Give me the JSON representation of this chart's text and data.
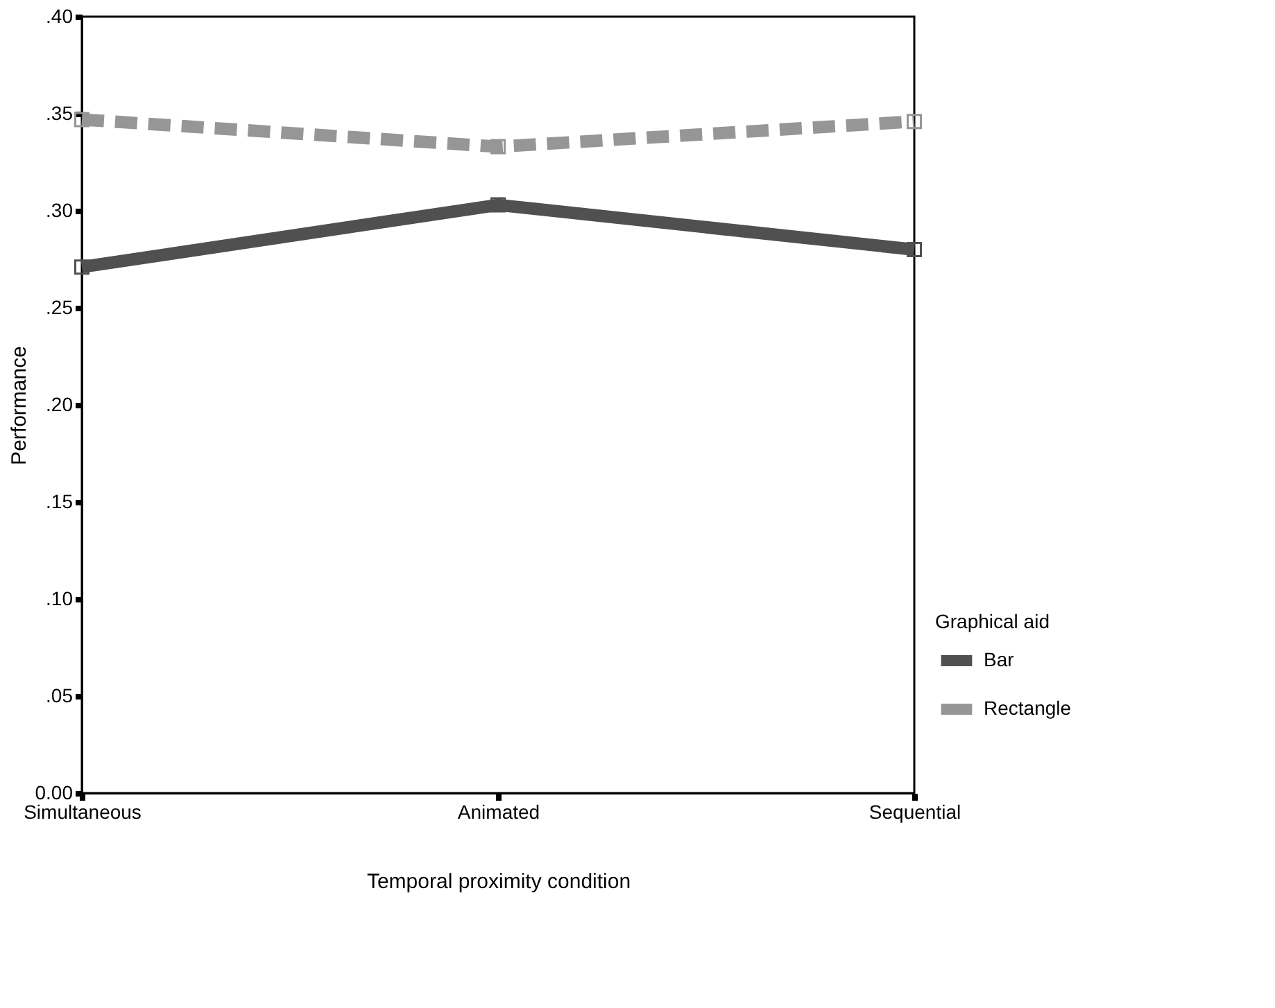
{
  "chart_data": {
    "type": "line",
    "xlabel": "Temporal proximity condition",
    "ylabel": "Performance",
    "legend_title": "Graphical aid",
    "categories": [
      "Simultaneous",
      "Animated",
      "Sequential"
    ],
    "series": [
      {
        "name": "Bar",
        "color": "#505050",
        "line_style": "solid",
        "values": [
          0.271,
          0.303,
          0.28
        ]
      },
      {
        "name": "Rectangle",
        "color": "#969696",
        "line_style": "dashed",
        "values": [
          0.347,
          0.333,
          0.346
        ]
      }
    ],
    "ylim": [
      0,
      0.4
    ],
    "yticks": [
      {
        "value": 0,
        "label": "0.00"
      },
      {
        "value": 0.05,
        "label": ".05"
      },
      {
        "value": 0.1,
        "label": ".10"
      },
      {
        "value": 0.15,
        "label": ".15"
      },
      {
        "value": 0.2,
        "label": ".20"
      },
      {
        "value": 0.25,
        "label": ".25"
      },
      {
        "value": 0.3,
        "label": ".30"
      },
      {
        "value": 0.35,
        "label": ".35"
      },
      {
        "value": 0.4,
        "label": ".40"
      }
    ],
    "grid": false,
    "legend": "bottom right",
    "marker": "square"
  }
}
